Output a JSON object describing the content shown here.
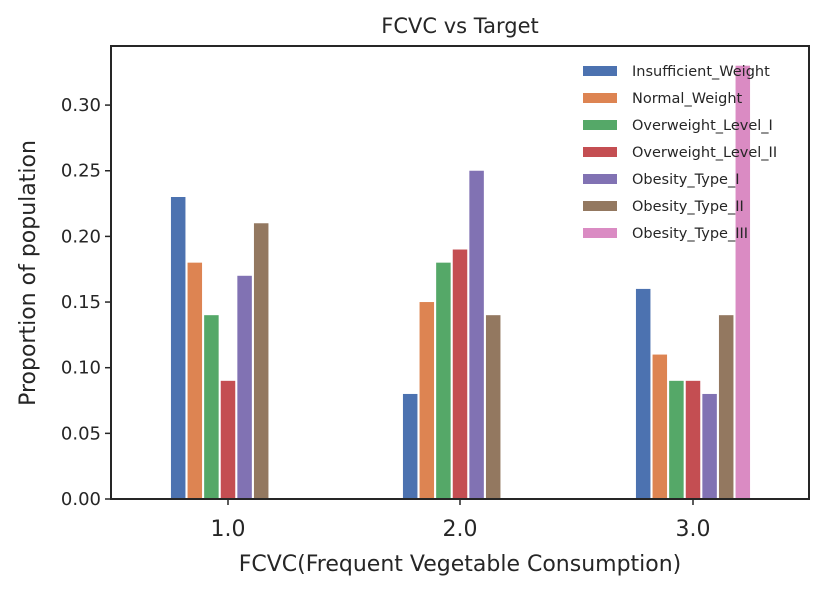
{
  "chart_data": {
    "type": "bar",
    "title": "FCVC vs Target",
    "xlabel": "FCVC(Frequent Vegetable Consumption)",
    "ylabel": "Proportion of population",
    "categories": [
      "1.0",
      "2.0",
      "3.0"
    ],
    "ylim": [
      0,
      0.345
    ],
    "yticks": [
      0.0,
      0.05,
      0.1,
      0.15,
      0.2,
      0.25,
      0.3
    ],
    "ytick_labels": [
      "0.00",
      "0.05",
      "0.10",
      "0.15",
      "0.20",
      "0.25",
      "0.30"
    ],
    "grid": false,
    "legend_position": "top-right",
    "series": [
      {
        "name": "Insufficient_Weight",
        "color": "#4c72b0",
        "values": [
          0.23,
          0.08,
          0.16
        ]
      },
      {
        "name": "Normal_Weight",
        "color": "#dd8452",
        "values": [
          0.18,
          0.15,
          0.11
        ]
      },
      {
        "name": "Overweight_Level_I",
        "color": "#55a868",
        "values": [
          0.14,
          0.18,
          0.09
        ]
      },
      {
        "name": "Overweight_Level_II",
        "color": "#c44e52",
        "values": [
          0.09,
          0.19,
          0.09
        ]
      },
      {
        "name": "Obesity_Type_I",
        "color": "#8172b3",
        "values": [
          0.17,
          0.25,
          0.08
        ]
      },
      {
        "name": "Obesity_Type_II",
        "color": "#937860",
        "values": [
          0.21,
          0.14,
          0.14
        ]
      },
      {
        "name": "Obesity_Type_III",
        "color": "#da8bc3",
        "values": [
          null,
          null,
          0.33
        ]
      }
    ]
  }
}
